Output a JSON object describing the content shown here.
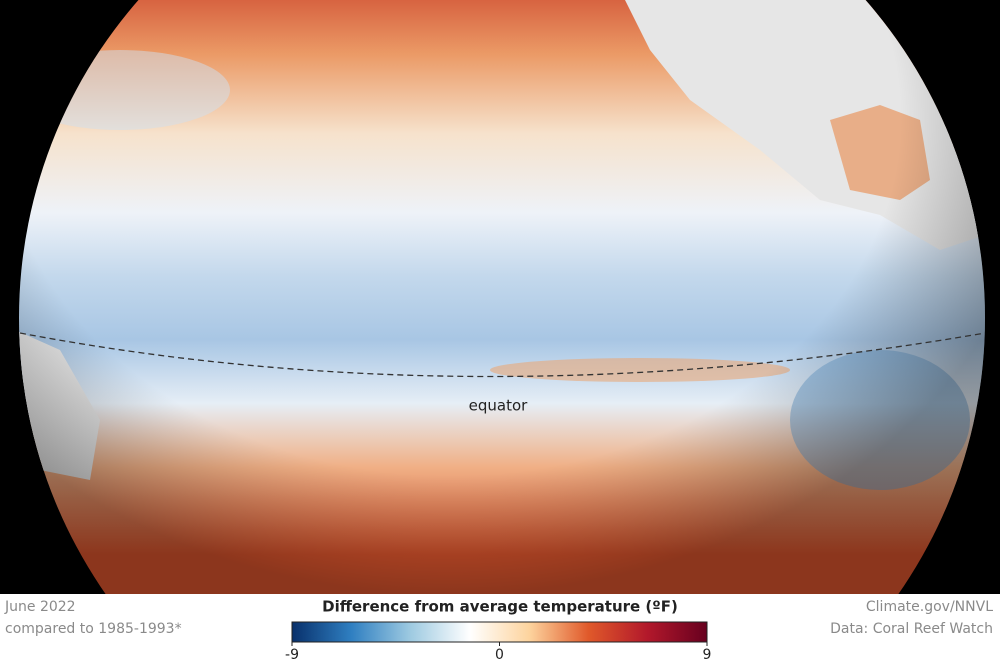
{
  "map": {
    "equator_label": "equator"
  },
  "caption": {
    "date": "June 2022",
    "baseline": "compared to 1985-1993*"
  },
  "legend": {
    "title": "Difference from average temperature (ºF)",
    "min": -9,
    "max": 9,
    "ticks": [
      -9,
      0,
      9
    ],
    "colors": [
      "#08306b",
      "#2f7fc1",
      "#9ecae1",
      "#ffffff",
      "#fdd49e",
      "#e0592a",
      "#b2182b",
      "#67001f"
    ]
  },
  "credits": {
    "source": "Climate.gov/NNVL",
    "data": "Data: Coral Reef Watch"
  }
}
